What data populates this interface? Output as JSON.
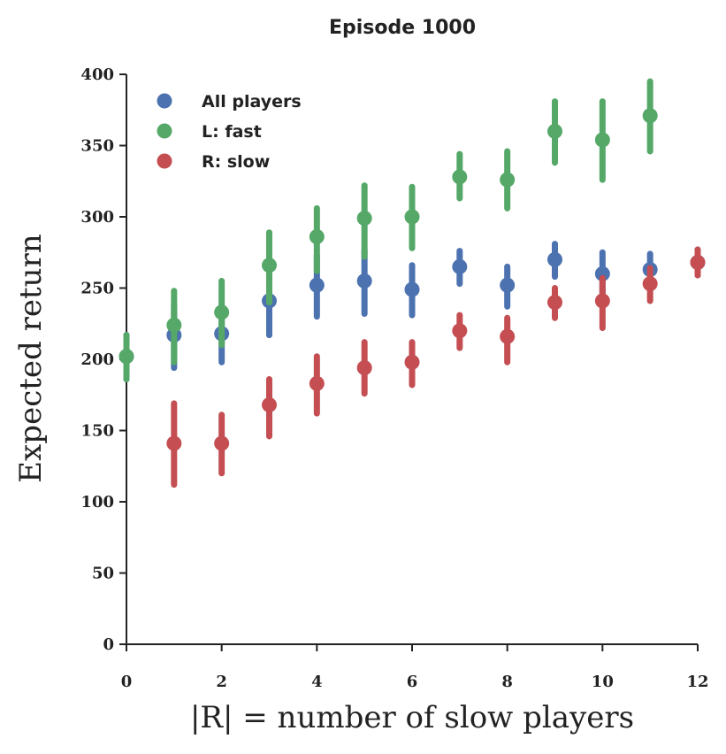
{
  "chart_data": {
    "type": "scatter",
    "title": "Episode 1000",
    "xlabel": "|R| = number of slow players",
    "ylabel": "Expected return",
    "xlim": [
      0,
      12
    ],
    "ylim": [
      0,
      400
    ],
    "xticks": [
      0,
      2,
      4,
      6,
      8,
      10,
      12
    ],
    "yticks": [
      0,
      50,
      100,
      150,
      200,
      250,
      300,
      350,
      400
    ],
    "grid": false,
    "legend_position": "top-left",
    "error_bars": true,
    "series": [
      {
        "name": "All players",
        "color": "#4c72b0",
        "points": [
          {
            "x": 0,
            "y": 202,
            "lo": 186,
            "hi": 217
          },
          {
            "x": 1,
            "y": 217,
            "lo": 194,
            "hi": 238
          },
          {
            "x": 2,
            "y": 218,
            "lo": 198,
            "hi": 238
          },
          {
            "x": 3,
            "y": 241,
            "lo": 217,
            "hi": 262
          },
          {
            "x": 4,
            "y": 252,
            "lo": 230,
            "hi": 273
          },
          {
            "x": 5,
            "y": 255,
            "lo": 232,
            "hi": 277
          },
          {
            "x": 6,
            "y": 249,
            "lo": 231,
            "hi": 266
          },
          {
            "x": 7,
            "y": 265,
            "lo": 253,
            "hi": 276
          },
          {
            "x": 8,
            "y": 252,
            "lo": 237,
            "hi": 265
          },
          {
            "x": 9,
            "y": 270,
            "lo": 258,
            "hi": 281
          },
          {
            "x": 10,
            "y": 260,
            "lo": 246,
            "hi": 275
          },
          {
            "x": 11,
            "y": 263,
            "lo": 251,
            "hi": 274
          },
          {
            "x": 12,
            "y": 268,
            "lo": 259,
            "hi": 277
          }
        ]
      },
      {
        "name": "L: fast",
        "color": "#55a868",
        "points": [
          {
            "x": 0,
            "y": 202,
            "lo": 186,
            "hi": 217
          },
          {
            "x": 1,
            "y": 224,
            "lo": 198,
            "hi": 248
          },
          {
            "x": 2,
            "y": 233,
            "lo": 210,
            "hi": 255
          },
          {
            "x": 3,
            "y": 266,
            "lo": 240,
            "hi": 289
          },
          {
            "x": 4,
            "y": 286,
            "lo": 262,
            "hi": 306
          },
          {
            "x": 5,
            "y": 299,
            "lo": 272,
            "hi": 322
          },
          {
            "x": 6,
            "y": 300,
            "lo": 278,
            "hi": 321
          },
          {
            "x": 7,
            "y": 328,
            "lo": 313,
            "hi": 344
          },
          {
            "x": 8,
            "y": 326,
            "lo": 306,
            "hi": 346
          },
          {
            "x": 9,
            "y": 360,
            "lo": 338,
            "hi": 381
          },
          {
            "x": 10,
            "y": 354,
            "lo": 326,
            "hi": 381
          },
          {
            "x": 11,
            "y": 371,
            "lo": 346,
            "hi": 395
          }
        ]
      },
      {
        "name": "R: slow",
        "color": "#c44e52",
        "points": [
          {
            "x": 1,
            "y": 141,
            "lo": 112,
            "hi": 169
          },
          {
            "x": 2,
            "y": 141,
            "lo": 120,
            "hi": 161
          },
          {
            "x": 3,
            "y": 168,
            "lo": 146,
            "hi": 186
          },
          {
            "x": 4,
            "y": 183,
            "lo": 162,
            "hi": 202
          },
          {
            "x": 5,
            "y": 194,
            "lo": 176,
            "hi": 212
          },
          {
            "x": 6,
            "y": 198,
            "lo": 182,
            "hi": 212
          },
          {
            "x": 7,
            "y": 220,
            "lo": 208,
            "hi": 231
          },
          {
            "x": 8,
            "y": 216,
            "lo": 198,
            "hi": 229
          },
          {
            "x": 9,
            "y": 240,
            "lo": 229,
            "hi": 250
          },
          {
            "x": 10,
            "y": 241,
            "lo": 222,
            "hi": 257
          },
          {
            "x": 11,
            "y": 253,
            "lo": 241,
            "hi": 264
          },
          {
            "x": 12,
            "y": 268,
            "lo": 259,
            "hi": 277
          }
        ]
      }
    ]
  }
}
